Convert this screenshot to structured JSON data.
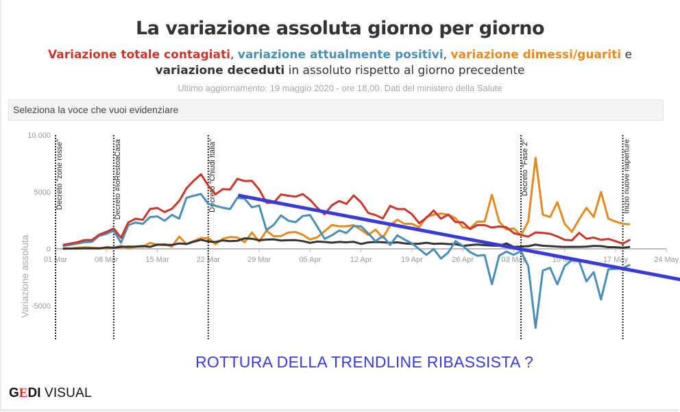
{
  "header": {
    "title": "La variazione assoluta giorno per giorno",
    "subtitle": {
      "part1": "Variazione totale contagiati",
      "sep1": ", ",
      "part2": "variazione attualmente positivi",
      "sep2": ", ",
      "part3": "variazione dimessi/guariti",
      "sep3": " e ",
      "part4": "variazione deceduti",
      "rest": " in assoluto rispetto al giorno precedente"
    },
    "updated": "Ultimo aggiornamento: 19 maggio 2020 - ore 18,00. Dati del ministero della Salute"
  },
  "select": {
    "placeholder": "Seleziona la voce che vuoi evidenziare"
  },
  "annotation_text": "ROTTURA DELLA TRENDLINE RIBASSISTA ?",
  "logo": {
    "g": "G",
    "e": "E",
    "di": "DI",
    "visual": " VISUAL"
  },
  "chart_data": {
    "type": "line",
    "ylabel": "Variazione assoluta",
    "xlabel": "",
    "ylim": [
      -8000,
      10000
    ],
    "xlim_days": [
      0,
      84
    ],
    "x_start_day": 1,
    "y_ticks": [
      {
        "value": 10000,
        "label": "10.000"
      },
      {
        "value": 5000,
        "label": "5000"
      },
      {
        "value": 0,
        "label": "0"
      },
      {
        "value": -5000,
        "label": "-5000"
      }
    ],
    "x_ticks": [
      {
        "day": 0,
        "label": "01 Mar"
      },
      {
        "day": 7,
        "label": "08 Mar"
      },
      {
        "day": 14,
        "label": "15 Mar"
      },
      {
        "day": 21,
        "label": "22 Mar"
      },
      {
        "day": 28,
        "label": "29 Mar"
      },
      {
        "day": 35,
        "label": "05 Apr"
      },
      {
        "day": 42,
        "label": "12 Apr"
      },
      {
        "day": 49,
        "label": "19 Apr"
      },
      {
        "day": 56,
        "label": "26 Apr"
      },
      {
        "day": 63,
        "label": "03 May"
      },
      {
        "day": 70,
        "label": "10 May"
      },
      {
        "day": 77,
        "label": "17 May"
      },
      {
        "day": 84,
        "label": "24 May"
      }
    ],
    "events": [
      {
        "day": 0,
        "label": "Decreto \"zone rosse\""
      },
      {
        "day": 8,
        "label": "Decreto #IoRestoaCasa"
      },
      {
        "day": 21,
        "label": "Decreto \"Chiudi Italia\""
      },
      {
        "day": 64,
        "label": "Decreto \"Fase 2\""
      },
      {
        "day": 78,
        "label": "Inizio nuove riaperture"
      }
    ],
    "series": [
      {
        "name": "Variazione dimessi/guariti",
        "color": "#e58a1e",
        "values": [
          66,
          33,
          102,
          138,
          109,
          66,
          33,
          102,
          280,
          41,
          213,
          181,
          527,
          369,
          414,
          192,
          1084,
          415,
          689,
          943,
          952,
          408,
          894,
          1036,
          999,
          589,
          1434,
          646,
          1590,
          1109,
          1118,
          1431,
          1480,
          1238,
          819,
          1022,
          1555,
          2099,
          1979,
          1985,
          2079,
          1677,
          1224,
          1695,
          962,
          2072,
          2563,
          2200,
          2200,
          1900,
          2800,
          3000,
          3100,
          3000,
          2700,
          1900,
          1800,
          2400,
          2400,
          4750,
          2400,
          1700,
          1800,
          1200,
          2400,
          8000,
          3000,
          2800,
          4100,
          2200,
          1500,
          2600,
          3600,
          2800,
          5000,
          2650,
          2400,
          2200,
          2150
        ]
      },
      {
        "name": "Variazione deceduti",
        "color": "#333333",
        "values": [
          18,
          27,
          28,
          41,
          49,
          36,
          133,
          97,
          168,
          196,
          189,
          250,
          175,
          368,
          349,
          345,
          475,
          427,
          627,
          793,
          651,
          601,
          743,
          683,
          712,
          919,
          889,
          756,
          812,
          837,
          727,
          760,
          766,
          681,
          525,
          636,
          604,
          542,
          610,
          570,
          619,
          431,
          566,
          602,
          578,
          525,
          575,
          482,
          433,
          454,
          534,
          437,
          464,
          420,
          415,
          260,
          333,
          382,
          323,
          285,
          269,
          474,
          174,
          195,
          236,
          369,
          274,
          243,
          194,
          165,
          179,
          172,
          195,
          262,
          242,
          153,
          145,
          99,
          162
        ]
      },
      {
        "name": "Variazione attualmente positivi",
        "color": "#4a8db5",
        "values": [
          258,
          342,
          466,
          587,
          620,
          1145,
          1326,
          1598,
          529,
          2076,
          2313,
          2200,
          2795,
          2853,
          2470,
          2989,
          2648,
          4480,
          4670,
          4821,
          3957,
          3780,
          3612,
          3491,
          4492,
          4401,
          3651,
          3815,
          1648,
          2107,
          2937,
          2477,
          2339,
          2886,
          2972,
          1941,
          880,
          1195,
          1615,
          1396,
          1996,
          1984,
          1363,
          675,
          1127,
          355,
          1189,
          809,
          486,
          -20,
          -528,
          -10,
          -851,
          -321,
          680,
          256,
          -290,
          -608,
          -548,
          -3106,
          -608,
          -239,
          -525,
          -199,
          -1513,
          -6939,
          -1904,
          -1663,
          -3119,
          -1500,
          -1000,
          -1100,
          -2850,
          -2050,
          -4450,
          -1800,
          -1750,
          -1700,
          -1400
        ]
      },
      {
        "name": "Variazione totale contagiati",
        "color": "#c8372d",
        "values": [
          335,
          466,
          587,
          769,
          778,
          1247,
          1492,
          1797,
          977,
          2313,
          2651,
          2547,
          3497,
          3590,
          3233,
          3526,
          4207,
          5322,
          5986,
          6557,
          5560,
          4789,
          5249,
          5210,
          6153,
          5959,
          5974,
          5217,
          4050,
          4053,
          4782,
          4668,
          4585,
          4805,
          4316,
          3599,
          3039,
          3836,
          4204,
          3951,
          4694,
          4092,
          3153,
          2972,
          2667,
          3786,
          3493,
          3491,
          3047,
          2256,
          2729,
          3370,
          2646,
          3021,
          2357,
          2324,
          1739,
          2091,
          2086,
          1872,
          1965,
          1900,
          1389,
          1221,
          1075,
          1444,
          1401,
          1327,
          1083,
          802,
          744,
          1402,
          888,
          992,
          789,
          875,
          675,
          451,
          813
        ]
      }
    ],
    "trendline": {
      "color": "#3a3ad6",
      "start": {
        "day": 25.1,
        "value": 4700
      },
      "end": {
        "day": 86,
        "value": -2710
      }
    }
  }
}
